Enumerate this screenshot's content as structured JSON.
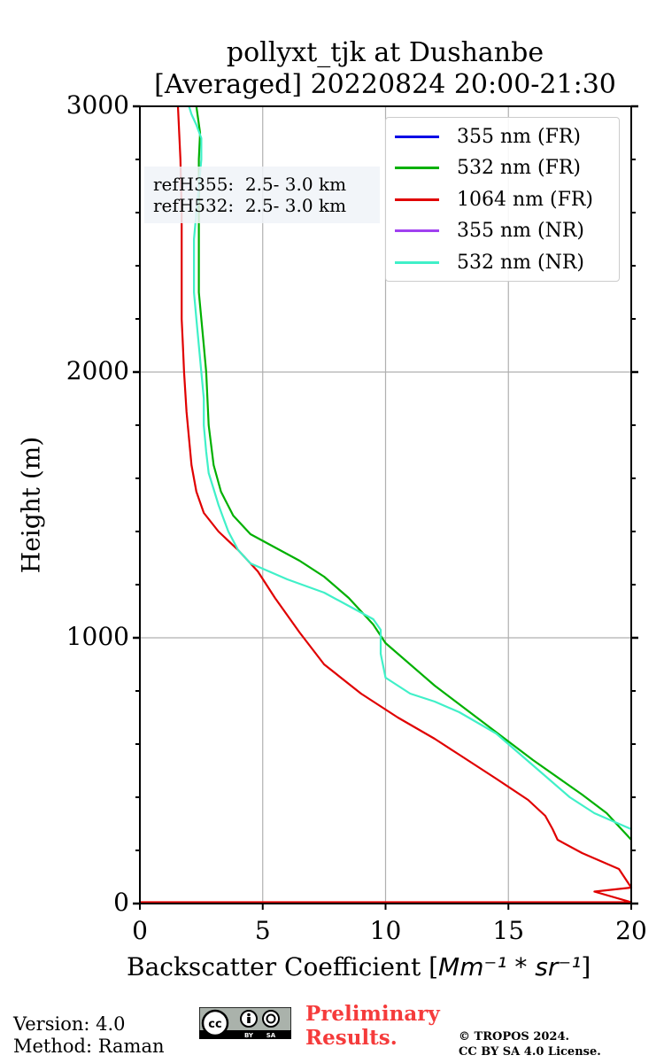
{
  "title_line1": "pollyxt_tjk at Dushanbe",
  "title_line2": "[Averaged] 20220824 20:00-21:30",
  "chart_data": {
    "type": "line",
    "xlabel_text": "Backscatter Coefficient [",
    "xlabel_math": "Mm⁻¹ * sr⁻¹",
    "xlabel_end": "]",
    "ylabel": "Height (m)",
    "xlim": [
      0,
      20
    ],
    "ylim": [
      0,
      3000
    ],
    "x_ticks": [
      "0",
      "5",
      "10",
      "15",
      "20"
    ],
    "x_tick_values": [
      0,
      5,
      10,
      15,
      20
    ],
    "y_ticks": [
      "0",
      "1000",
      "2000",
      "3000"
    ],
    "y_tick_values": [
      0,
      1000,
      2000,
      3000
    ],
    "grid": true,
    "legend_position": "top-right",
    "series": [
      {
        "name": "355 nm (FR)",
        "color": "#0000e6",
        "x": [],
        "y": []
      },
      {
        "name": "532 nm (FR)",
        "color": "#00b000",
        "x": [
          20.0,
          19.8,
          19.5,
          19.0,
          18.0,
          16.0,
          14.0,
          12.0,
          10.0,
          9.5,
          8.5,
          7.5,
          6.5,
          5.5,
          4.5,
          3.8,
          3.3,
          3.0,
          2.8,
          2.7,
          2.6,
          2.5,
          2.4,
          2.4,
          2.4,
          2.4,
          2.45,
          2.3
        ],
        "y": [
          240,
          260,
          290,
          340,
          410,
          540,
          680,
          820,
          980,
          1050,
          1150,
          1230,
          1290,
          1340,
          1390,
          1460,
          1550,
          1650,
          1800,
          2000,
          2100,
          2200,
          2300,
          2500,
          2650,
          2800,
          2900,
          3000
        ]
      },
      {
        "name": "1064 nm (FR)",
        "color": "#e00000",
        "x": [
          0.0,
          20.0,
          18.5,
          20.0,
          19.5,
          18.0,
          17.0,
          16.8,
          16.5,
          15.8,
          14.5,
          13.0,
          12.0,
          10.5,
          9.0,
          7.5,
          6.5,
          5.5,
          4.8,
          4.0,
          3.2,
          2.6,
          2.3,
          2.1,
          2.0,
          1.9,
          1.8,
          1.75,
          1.7,
          1.7,
          1.7,
          1.7,
          1.65,
          1.55
        ],
        "y": [
          5,
          5,
          45,
          60,
          130,
          190,
          240,
          280,
          330,
          390,
          470,
          560,
          620,
          700,
          790,
          900,
          1020,
          1150,
          1250,
          1330,
          1400,
          1470,
          1550,
          1650,
          1750,
          1850,
          2000,
          2100,
          2200,
          2300,
          2450,
          2600,
          2800,
          3000
        ]
      },
      {
        "name": "355 nm (NR)",
        "color": "#a040f0",
        "x": [],
        "y": []
      },
      {
        "name": "532 nm (NR)",
        "color": "#40f0c8",
        "x": [
          20.0,
          19.5,
          18.5,
          17.5,
          16.0,
          14.5,
          13.0,
          12.0,
          11.0,
          10.0,
          9.8,
          9.8,
          9.5,
          8.5,
          7.5,
          6.0,
          4.5,
          4.0,
          3.6,
          3.4,
          3.2,
          3.0,
          2.8,
          2.7,
          2.6,
          2.6,
          2.5,
          2.4,
          2.3,
          2.2,
          2.2,
          2.2,
          2.3,
          2.4,
          2.5,
          2.5,
          2.3,
          2.1,
          2.0
        ],
        "y": [
          280,
          300,
          340,
          400,
          520,
          640,
          720,
          760,
          790,
          850,
          940,
          1030,
          1070,
          1120,
          1170,
          1220,
          1280,
          1330,
          1400,
          1450,
          1500,
          1560,
          1620,
          1700,
          1800,
          1900,
          2000,
          2100,
          2200,
          2300,
          2400,
          2500,
          2600,
          2700,
          2800,
          2880,
          2930,
          2970,
          3000
        ]
      }
    ]
  },
  "ref_text": {
    "line1": "refH355:  2.5- 3.0 km",
    "line2": "refH532:  2.5- 3.0 km"
  },
  "footer": {
    "version": "Version: 4.0",
    "method": "Method: Raman",
    "preliminary1": "Preliminary",
    "preliminary2": "Results.",
    "copyright1": "© TROPOS 2024.",
    "copyright2": "CC BY SA 4.0 License.",
    "cc_text": "cc",
    "by_text": "BY",
    "sa_text": "SA"
  }
}
